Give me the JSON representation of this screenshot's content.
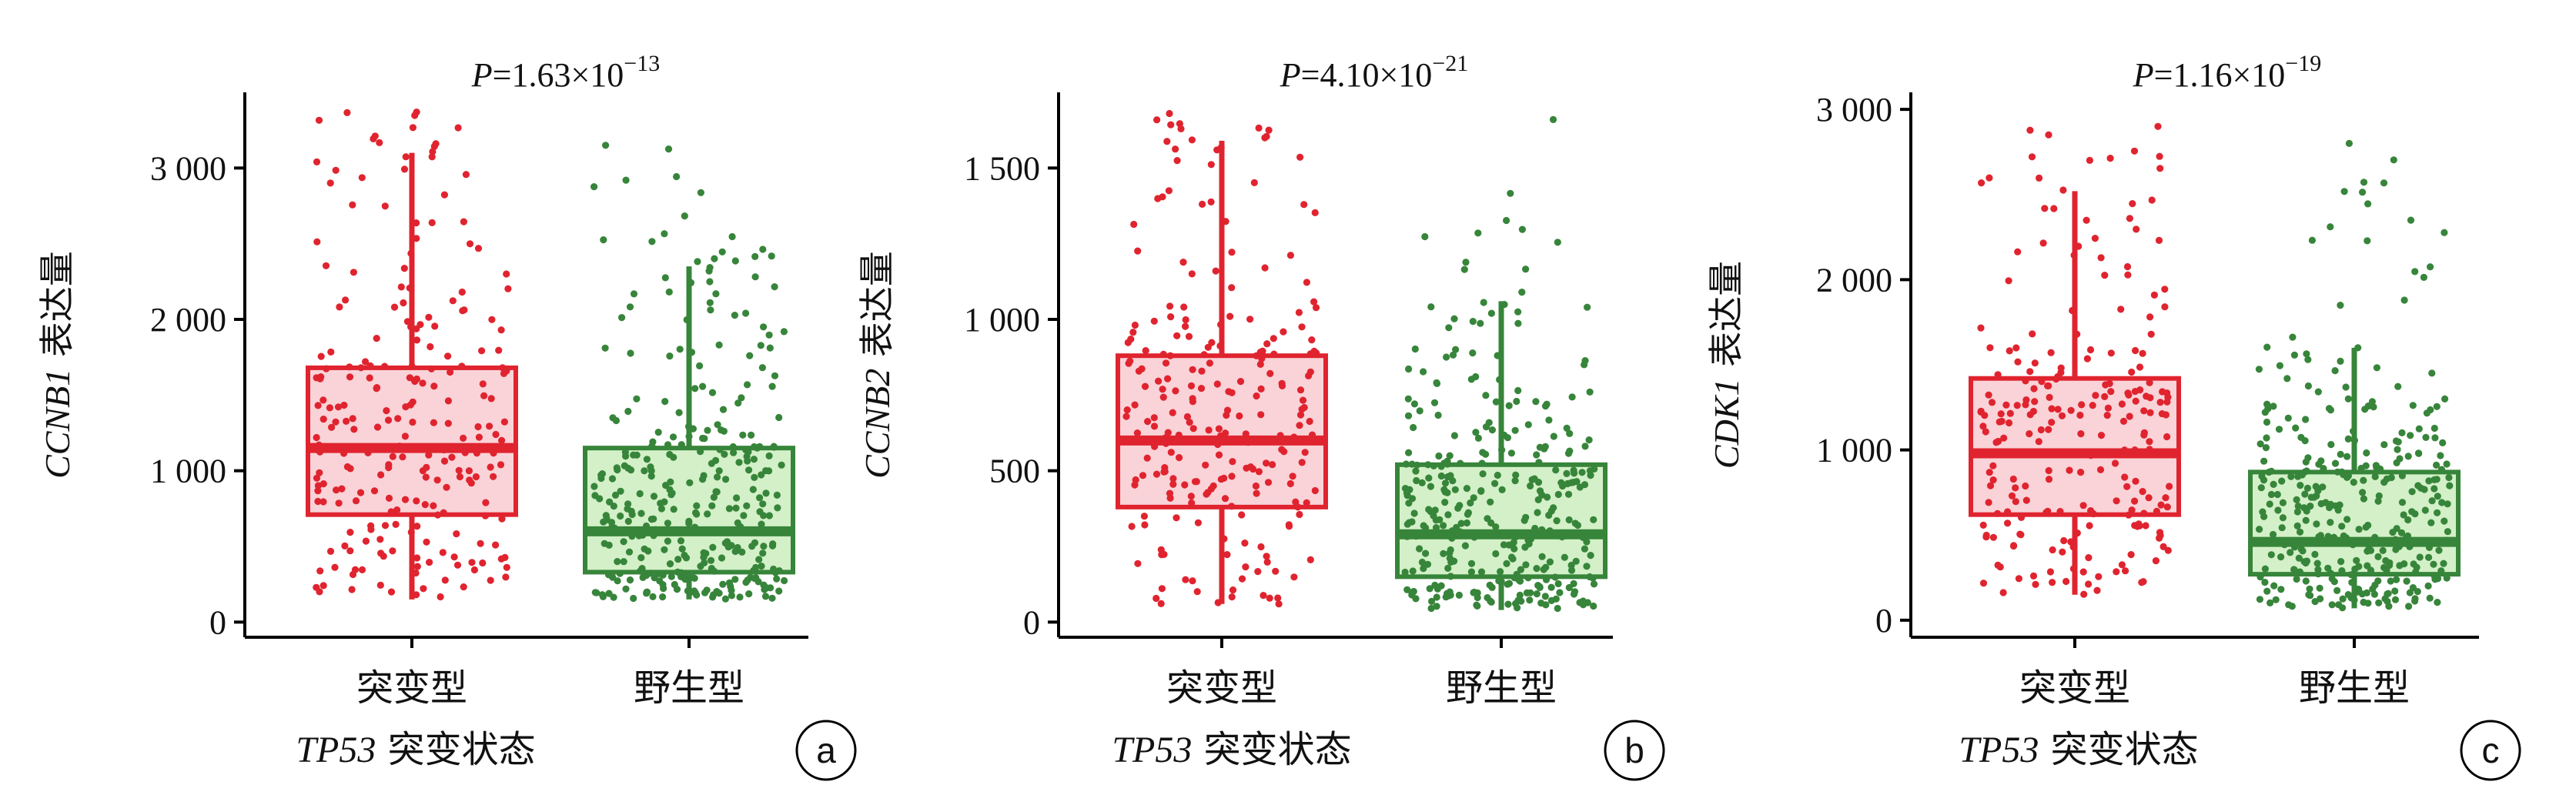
{
  "colors": {
    "mutant": "#e0242f",
    "mutant_fill": "#f9d3d8",
    "wild": "#37853a",
    "wild_fill": "#d3f0c8"
  },
  "chart_data": [
    {
      "type": "box",
      "panel": "a",
      "p_label": "P",
      "p_text": "=1.63×10",
      "p_exp": "−13",
      "ylabel_gene": "CCNB1",
      "ylabel_suffix": " 表达量",
      "xlabel_gene": "TP53",
      "xlabel_suffix": " 突变状态",
      "ylim": [
        -100,
        3500
      ],
      "yticks": [
        0,
        1000,
        2000,
        3000
      ],
      "ytick_labels": [
        "0",
        "1 000",
        "2 000",
        "3 000"
      ],
      "categories": [
        "突变型",
        "野生型"
      ],
      "series": [
        {
          "whisker_low": 150,
          "q1": 710,
          "median": 1150,
          "q3": 1680,
          "whisker_high": 3100,
          "n_points": 230,
          "max_point": 3370
        },
        {
          "whisker_low": 150,
          "q1": 330,
          "median": 600,
          "q3": 1150,
          "whisker_high": 2350,
          "n_points": 330,
          "max_point": 3150
        }
      ]
    },
    {
      "type": "box",
      "panel": "b",
      "p_label": "P",
      "p_text": "=4.10×10",
      "p_exp": "−21",
      "ylabel_gene": "CCNB2",
      "ylabel_suffix": " 表达量",
      "xlabel_gene": "TP53",
      "xlabel_suffix": " 突变状态",
      "ylim": [
        -50,
        1750
      ],
      "yticks": [
        0,
        500,
        1000,
        1500
      ],
      "ytick_labels": [
        "0",
        "500",
        "1 000",
        "1 500"
      ],
      "categories": [
        "突变型",
        "野生型"
      ],
      "series": [
        {
          "whisker_low": 60,
          "q1": 380,
          "median": 600,
          "q3": 880,
          "whisker_high": 1590,
          "n_points": 230,
          "max_point": 1680
        },
        {
          "whisker_low": 40,
          "q1": 150,
          "median": 290,
          "q3": 520,
          "whisker_high": 1060,
          "n_points": 330,
          "max_point": 1660
        }
      ]
    },
    {
      "type": "box",
      "panel": "c",
      "p_label": "P",
      "p_text": "=1.16×10",
      "p_exp": "−19",
      "ylabel_gene": "CDK1",
      "ylabel_suffix": " 表达量",
      "xlabel_gene": "TP53",
      "xlabel_suffix": " 突变状态",
      "ylim": [
        -100,
        3100
      ],
      "yticks": [
        0,
        1000,
        2000,
        3000
      ],
      "ytick_labels": [
        "0",
        "1 000",
        "2 000",
        "3 000"
      ],
      "categories": [
        "突变型",
        "野生型"
      ],
      "series": [
        {
          "whisker_low": 150,
          "q1": 620,
          "median": 980,
          "q3": 1420,
          "whisker_high": 2520,
          "n_points": 230,
          "max_point": 2900
        },
        {
          "whisker_low": 70,
          "q1": 270,
          "median": 460,
          "q3": 870,
          "whisker_high": 1600,
          "n_points": 330,
          "max_point": 2800
        }
      ]
    }
  ]
}
